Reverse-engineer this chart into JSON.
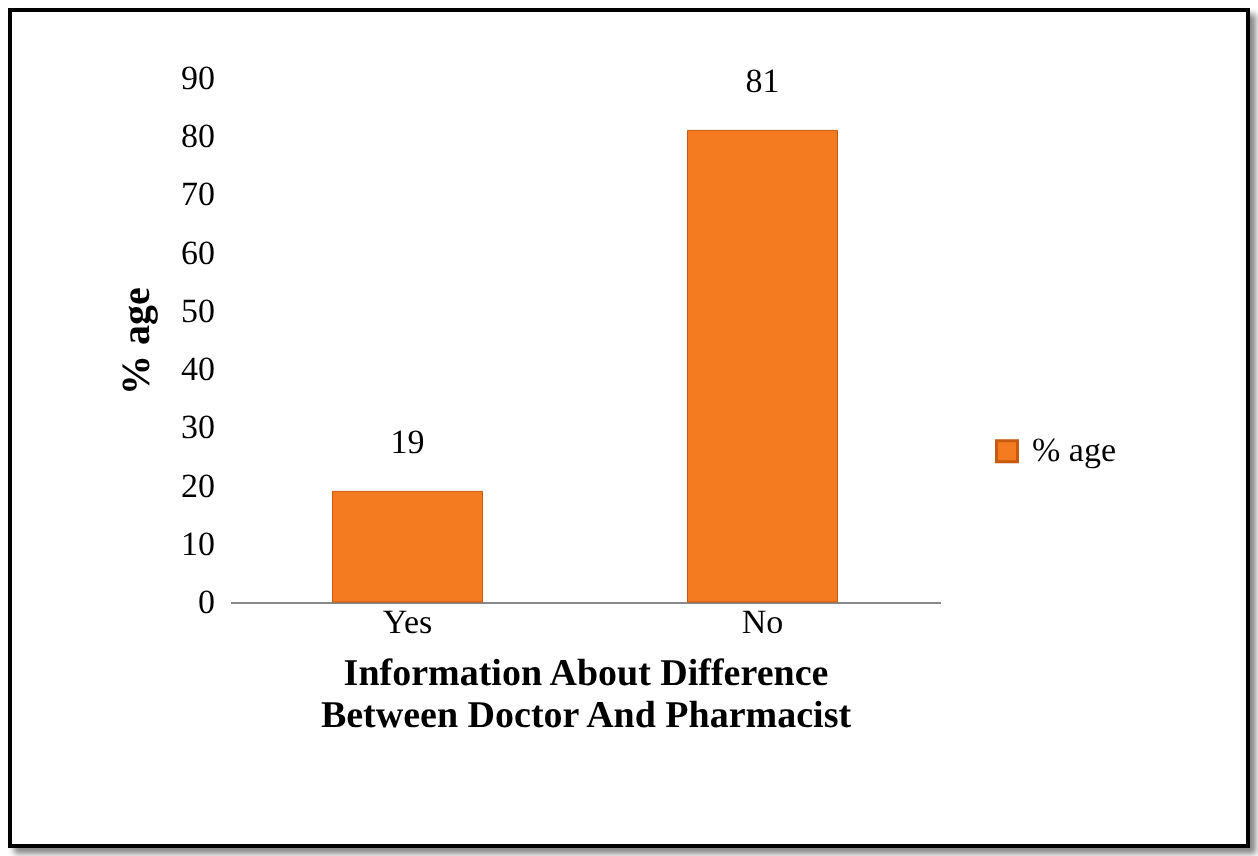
{
  "chart_data": {
    "type": "bar",
    "xlabel": "Information About Difference Between Doctor And Pharmacist",
    "ylabel": "% age",
    "categories": [
      "Yes",
      "No"
    ],
    "series": [
      {
        "name": "% age",
        "color": "#f47b20",
        "values": [
          19,
          81
        ]
      }
    ],
    "ylim": [
      0,
      90
    ],
    "yticks": [
      0,
      10,
      20,
      30,
      40,
      50,
      60,
      70,
      80,
      90
    ],
    "grid": false,
    "legend": "right",
    "data_labels": true
  }
}
